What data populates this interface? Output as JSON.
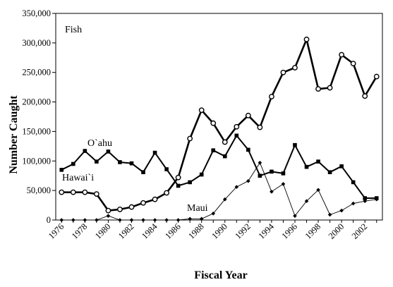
{
  "chart_data": {
    "type": "line",
    "title": "Fish",
    "xlabel": "Fiscal Year",
    "ylabel": "Number Caught",
    "ylim": [
      0,
      350000
    ],
    "xlim": [
      1976,
      2003
    ],
    "x_tick_labels": [
      "1976",
      "1978",
      "1980",
      "1982",
      "1984",
      "1986",
      "1988",
      "1990",
      "1992",
      "1994",
      "1996",
      "1998",
      "2000",
      "2002"
    ],
    "y_tick_labels": [
      "0",
      "50,000",
      "100,000",
      "150,000",
      "200,000",
      "250,000",
      "300,000",
      "350,000"
    ],
    "grid": false,
    "legend": "none",
    "x": [
      1976,
      1977,
      1978,
      1979,
      1980,
      1981,
      1982,
      1983,
      1984,
      1985,
      1986,
      1987,
      1988,
      1989,
      1990,
      1991,
      1992,
      1993,
      1994,
      1995,
      1996,
      1997,
      1998,
      1999,
      2000,
      2001,
      2002,
      2003
    ],
    "series": [
      {
        "name": "Hawai`i",
        "marker": "circle",
        "color": "#000000",
        "values": [
          47000,
          47000,
          47000,
          44000,
          16000,
          18000,
          22000,
          29000,
          35000,
          46000,
          72000,
          138000,
          186000,
          164000,
          132000,
          158000,
          177000,
          157000,
          209000,
          250000,
          258000,
          306000,
          222000,
          224000,
          280000,
          265000,
          210000,
          243000
        ]
      },
      {
        "name": "O`ahu",
        "marker": "square",
        "color": "#000000",
        "values": [
          85000,
          95000,
          117000,
          99000,
          116000,
          98000,
          96000,
          81000,
          114000,
          86000,
          58000,
          64000,
          77000,
          118000,
          108000,
          143000,
          119000,
          75000,
          82000,
          79000,
          127000,
          90000,
          99000,
          81000,
          91000,
          64000,
          37000,
          37000
        ]
      },
      {
        "name": "Maui",
        "marker": "diamond",
        "color": "#000000",
        "values": [
          0,
          0,
          0,
          0,
          7000,
          0,
          0,
          0,
          0,
          0,
          0,
          2000,
          2000,
          11000,
          35000,
          56000,
          66000,
          97000,
          48000,
          61000,
          7000,
          32000,
          51000,
          9000,
          16000,
          28000,
          32000,
          35000
        ]
      }
    ]
  }
}
